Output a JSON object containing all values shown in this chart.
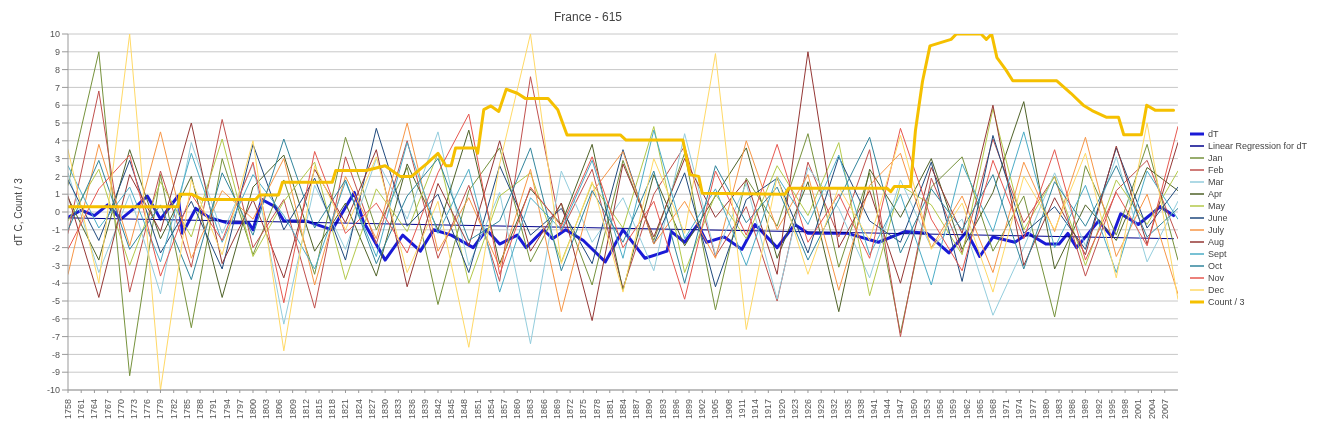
{
  "chart_data": {
    "type": "line",
    "title": "France - 615",
    "ylabel": "dT C, Count / 3",
    "x": [
      1758,
      1765,
      1772,
      1779,
      1786,
      1793,
      1800,
      1807,
      1814,
      1821,
      1828,
      1835,
      1842,
      1849,
      1856,
      1863,
      1870,
      1877,
      1884,
      1891,
      1898,
      1905,
      1912,
      1919,
      1926,
      1933,
      1940,
      1947,
      1954,
      1961,
      1968,
      1975,
      1982,
      1989,
      1996,
      2003,
      2010
    ],
    "xlim": [
      1758,
      2010
    ],
    "xticks": [
      1758,
      1761,
      1764,
      1767,
      1770,
      1773,
      1776,
      1779,
      1782,
      1785,
      1788,
      1791,
      1794,
      1797,
      1800,
      1803,
      1806,
      1809,
      1812,
      1815,
      1818,
      1821,
      1824,
      1827,
      1830,
      1833,
      1836,
      1839,
      1842,
      1845,
      1848,
      1851,
      1854,
      1857,
      1860,
      1863,
      1866,
      1869,
      1872,
      1875,
      1878,
      1881,
      1884,
      1887,
      1890,
      1893,
      1896,
      1899,
      1902,
      1905,
      1908,
      1911,
      1914,
      1917,
      1920,
      1923,
      1926,
      1929,
      1932,
      1935,
      1938,
      1941,
      1944,
      1947,
      1950,
      1953,
      1956,
      1959,
      1962,
      1965,
      1968,
      1971,
      1974,
      1977,
      1980,
      1983,
      1986,
      1989,
      1992,
      1995,
      1998,
      2001,
      2004,
      2007
    ],
    "ylim": [
      -10,
      10
    ],
    "yticks": [
      -10,
      -9,
      -8,
      -7,
      -6,
      -5,
      -4,
      -3,
      -2,
      -1,
      0,
      1,
      2,
      3,
      4,
      5,
      6,
      7,
      8,
      9,
      10
    ],
    "grid": "y",
    "legend": "right",
    "series": [
      {
        "name": "dT",
        "color": "#1a1ad6",
        "x": [
          1758,
          1761,
          1764,
          1767,
          1770,
          1773,
          1776,
          1779,
          1783,
          1784,
          1787,
          1790,
          1794,
          1799,
          1800,
          1802,
          1805,
          1807,
          1812,
          1818,
          1823,
          1825,
          1830,
          1834,
          1838,
          1841,
          1845,
          1850,
          1853,
          1856,
          1860,
          1862,
          1866,
          1868,
          1871,
          1875,
          1880,
          1884,
          1889,
          1894,
          1895,
          1898,
          1901,
          1903,
          1907,
          1911,
          1914,
          1919,
          1923,
          1926,
          1932,
          1935,
          1942,
          1948,
          1953,
          1958,
          1962,
          1965,
          1968,
          1973,
          1976,
          1980,
          1983,
          1985,
          1987,
          1992,
          1995,
          1997,
          2001,
          2006,
          2009
        ],
        "values": [
          -0.3,
          0.1,
          -0.2,
          0.4,
          -0.4,
          0.2,
          0.9,
          -0.4,
          0.9,
          -1.2,
          0.2,
          -0.3,
          -0.6,
          -0.6,
          -1.0,
          0.7,
          0.3,
          -0.5,
          -0.5,
          -1.0,
          1.1,
          -0.5,
          -2.7,
          -1.3,
          -2.2,
          -1.0,
          -1.3,
          -2.0,
          -1.0,
          -1.8,
          -1.3,
          -2.0,
          -1.0,
          -1.5,
          -1.0,
          -1.6,
          -2.8,
          -1.0,
          -2.6,
          -2.2,
          -1.1,
          -1.7,
          -0.7,
          -1.7,
          -1.4,
          -2.1,
          -0.7,
          -2.0,
          -0.7,
          -1.2,
          -1.2,
          -1.2,
          -1.7,
          -1.1,
          -1.2,
          -2.3,
          -1.1,
          -2.5,
          -1.4,
          -1.7,
          -1.2,
          -1.8,
          -1.8,
          -1.2,
          -2.0,
          -0.5,
          -1.4,
          -0.1,
          -0.7,
          0.3,
          -0.2
        ]
      },
      {
        "name": "Linear Regression for dT",
        "color": "#00008b",
        "x": [
          1758,
          2009
        ],
        "values": [
          -0.33,
          -1.5
        ]
      },
      {
        "name": "Jan",
        "color": "#76923c",
        "values": [
          1.5,
          9.0,
          -9.2,
          2.1,
          -6.5,
          3.0,
          -2.4,
          1.8,
          -3.5,
          4.2,
          -1.0,
          2.5,
          -5.2,
          1.2,
          3.6,
          -2.8,
          0.5,
          -4.1,
          2.9,
          -1.6,
          3.3,
          -5.5,
          1.9,
          -0.8,
          4.4,
          -3.1,
          2.2,
          -6.8,
          1.4,
          3.1,
          -2.2,
          0.9,
          -5.9,
          2.6,
          -1.3,
          3.8,
          -2.7
        ]
      },
      {
        "name": "Feb",
        "color": "#c0504d",
        "values": [
          -1.2,
          6.8,
          -4.5,
          2.3,
          -3.1,
          5.2,
          -2.0,
          0.7,
          -5.4,
          3.1,
          -1.8,
          4.0,
          -2.6,
          1.5,
          -3.9,
          7.6,
          -1.1,
          2.4,
          -4.3,
          1.0,
          3.7,
          -2.5,
          0.3,
          -5.0,
          2.8,
          -1.4,
          3.5,
          -7.0,
          1.9,
          -2.3,
          4.1,
          -0.6,
          2.0,
          -3.6,
          1.2,
          2.9,
          -1.5
        ]
      },
      {
        "name": "Mar",
        "color": "#93cddd",
        "values": [
          2.2,
          -3.4,
          1.0,
          -4.6,
          3.9,
          -1.2,
          2.7,
          -6.3,
          1.5,
          -2.1,
          3.0,
          -0.4,
          4.5,
          -3.0,
          1.1,
          -7.4,
          2.3,
          -1.7,
          0.8,
          -3.3,
          4.4,
          -2.4,
          1.6,
          -4.9,
          2.5,
          0.2,
          -3.7,
          1.8,
          -2.0,
          -0.4,
          -5.8,
          -2.0,
          2.2,
          -1.9,
          3.1,
          -2.8,
          0.6
        ]
      },
      {
        "name": "Apr",
        "color": "#4f6228",
        "values": [
          0.8,
          -2.7,
          3.5,
          -1.5,
          2.0,
          -4.8,
          1.4,
          3.2,
          -2.2,
          0.5,
          -3.6,
          2.7,
          -1.0,
          4.6,
          -2.9,
          1.3,
          -0.7,
          3.8,
          -4.4,
          2.1,
          -1.9,
          0.9,
          3.6,
          -2.6,
          1.7,
          -5.6,
          2.4,
          -0.3,
          3.0,
          -2.1,
          1.1,
          6.2,
          -3.2,
          0.4,
          -1.6,
          2.5,
          1.2
        ]
      },
      {
        "name": "May",
        "color": "#b3c94a",
        "values": [
          -0.5,
          2.4,
          -3.0,
          1.7,
          -1.4,
          4.1,
          -2.5,
          0.6,
          2.8,
          -3.8,
          1.3,
          -1.1,
          3.3,
          -4.0,
          0.9,
          2.2,
          -2.8,
          1.6,
          -0.9,
          4.8,
          -3.4,
          1.0,
          -1.5,
          2.6,
          -0.2,
          3.9,
          -4.7,
          1.5,
          0.4,
          -2.4,
          5.8,
          -1.0,
          2.0,
          -3.0,
          1.8,
          -0.7,
          2.3
        ]
      },
      {
        "name": "June",
        "color": "#1f497d",
        "values": [
          1.8,
          -1.6,
          2.9,
          -2.3,
          0.6,
          -3.2,
          3.8,
          -1.0,
          1.9,
          -2.7,
          4.7,
          -0.8,
          1.0,
          -3.4,
          2.6,
          -1.3,
          0.2,
          -2.9,
          3.5,
          -1.8,
          2.2,
          -4.2,
          0.7,
          1.9,
          -2.3,
          3.1,
          -0.5,
          -1.7,
          2.8,
          -3.9,
          4.3,
          -1.2,
          0.3,
          -2.1,
          3.6,
          -0.9,
          1.4
        ]
      },
      {
        "name": "July",
        "color": "#f79646",
        "values": [
          -3.5,
          3.8,
          -1.9,
          4.5,
          -2.6,
          1.2,
          -0.4,
          3.0,
          -4.1,
          2.0,
          -1.5,
          5.0,
          -2.2,
          0.8,
          -3.1,
          2.4,
          -5.6,
          1.1,
          3.4,
          -1.8,
          0.6,
          -2.6,
          4.0,
          -1.0,
          2.1,
          -4.4,
          1.5,
          3.3,
          -2.0,
          0.9,
          -3.4,
          2.8,
          -1.1,
          4.2,
          -2.5,
          1.0,
          -4.6
        ]
      },
      {
        "name": "Aug",
        "color": "#953735",
        "values": [
          0.9,
          -4.8,
          2.1,
          -1.1,
          5.0,
          -2.9,
          0.7,
          -3.7,
          2.4,
          -0.6,
          3.5,
          -4.2,
          1.6,
          -1.9,
          4.0,
          -2.2,
          0.5,
          -6.1,
          2.7,
          -1.4,
          3.0,
          -0.3,
          1.8,
          -3.5,
          9.0,
          -2.0,
          1.2,
          -4.0,
          2.5,
          -1.2,
          6.0,
          -3.0,
          0.8,
          -2.4,
          3.7,
          -1.8,
          3.9
        ]
      },
      {
        "name": "Sept",
        "color": "#4bacc6",
        "values": [
          2.6,
          -0.9,
          1.4,
          -2.8,
          3.3,
          -1.7,
          2.1,
          -0.2,
          -3.2,
          1.7,
          -2.5,
          3.9,
          -1.2,
          2.4,
          -4.5,
          0.8,
          -1.0,
          2.9,
          -2.6,
          4.6,
          -1.5,
          1.3,
          -3.0,
          2.0,
          -0.7,
          3.2,
          -2.4,
          1.0,
          -4.1,
          2.7,
          -1.1,
          4.5,
          -2.0,
          1.5,
          -3.4,
          2.3,
          -0.4
        ]
      },
      {
        "name": "Oct",
        "color": "#31859c",
        "values": [
          -1.0,
          2.9,
          -2.1,
          0.4,
          -3.8,
          2.2,
          -1.3,
          4.1,
          -0.9,
          1.8,
          -2.9,
          0.9,
          3.0,
          -1.6,
          -0.5,
          3.6,
          -3.3,
          1.2,
          -1.7,
          2.3,
          -4.0,
          2.6,
          -0.6,
          1.4,
          -2.7,
          0.7,
          4.2,
          -2.3,
          1.3,
          -1.0,
          2.1,
          -3.2,
          1.7,
          -0.8,
          2.6,
          -1.4,
          0.2
        ]
      },
      {
        "name": "Nov",
        "color": "#e6574f",
        "values": [
          -2.1,
          1.3,
          3.2,
          -3.6,
          1.0,
          -1.6,
          2.8,
          -5.1,
          3.4,
          -1.2,
          0.5,
          -2.3,
          2.2,
          5.5,
          -3.5,
          1.4,
          -0.8,
          3.1,
          -2.0,
          0.6,
          -4.9,
          2.3,
          -1.3,
          3.8,
          -1.7,
          1.0,
          -2.6,
          4.7,
          -0.4,
          -3.3,
          2.9,
          -1.5,
          3.5,
          -2.7,
          1.1,
          -1.9,
          4.8
        ]
      },
      {
        "name": "Dec",
        "color": "#ffd966",
        "values": [
          3.5,
          -4.0,
          10.0,
          -10.0,
          1.8,
          -2.4,
          4.0,
          -7.8,
          2.6,
          -1.0,
          3.1,
          -3.4,
          0.6,
          -7.6,
          2.7,
          10.0,
          -2.9,
          1.7,
          -4.5,
          3.0,
          -1.2,
          8.9,
          -6.6,
          2.0,
          -3.5,
          1.4,
          -1.6,
          4.3,
          -2.1,
          0.5,
          -4.5,
          2.0,
          -1.0,
          3.3,
          -3.7,
          5.0,
          -4.9
        ]
      },
      {
        "name": "Count / 3",
        "color": "#f5c000",
        "x": [
          1758,
          1783,
          1783.4,
          1786,
          1788.6,
          1800.6,
          1801.5,
          1805.8,
          1806.7,
          1818,
          1818.8,
          1825.7,
          1830,
          1833.4,
          1836,
          1839.4,
          1842,
          1843.8,
          1845,
          1846,
          1850.6,
          1851,
          1852.4,
          1854,
          1855.8,
          1857.5,
          1860,
          1861.9,
          1867,
          1869.2,
          1871.3,
          1883.4,
          1884.7,
          1897.6,
          1899.2,
          1901.2,
          1902,
          1920.8,
          1921.6,
          1944,
          1944.8,
          1945.6,
          1949.3,
          1950.4,
          1952,
          1953.7,
          1958.5,
          1959.7,
          1965.3,
          1966.5,
          1967.7,
          1968.9,
          1970.9,
          1972.5,
          1982.5,
          1985.7,
          1988.5,
          1990.5,
          1993.7,
          1996.5,
          1997.7,
          2001.7,
          2002.9,
          2004.9,
          2009
        ],
        "values": [
          0.29,
          0.29,
          1.0,
          1.0,
          0.7,
          0.7,
          0.96,
          0.96,
          1.67,
          1.67,
          2.33,
          2.33,
          2.6,
          2.0,
          2.0,
          2.7,
          3.3,
          2.6,
          2.6,
          3.6,
          3.6,
          3.3,
          5.75,
          5.96,
          5.65,
          6.9,
          6.67,
          6.37,
          6.37,
          5.75,
          4.33,
          4.33,
          4.04,
          4.04,
          2.1,
          2.0,
          1.05,
          1.0,
          1.33,
          1.33,
          1.14,
          1.43,
          1.43,
          4.57,
          7.33,
          9.33,
          9.7,
          10.0,
          10.0,
          9.7,
          10.0,
          8.67,
          8.0,
          7.37,
          7.37,
          6.67,
          6.0,
          5.7,
          5.33,
          5.33,
          4.34,
          4.34,
          6.0,
          5.71,
          5.71
        ]
      }
    ]
  }
}
